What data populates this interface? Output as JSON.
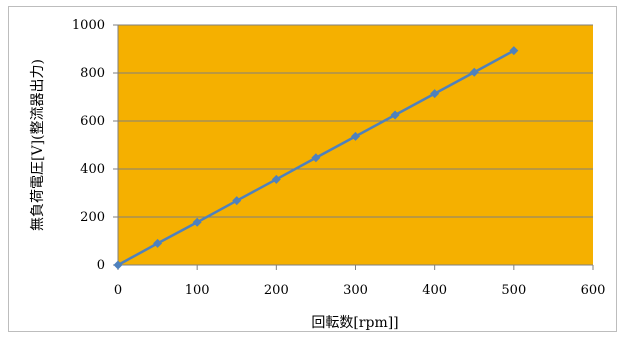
{
  "chart_data": {
    "type": "line",
    "title": "",
    "xlabel": "回転数[rpm]]",
    "ylabel": "無負荷電圧[V](整流器出力)",
    "xlim": [
      0,
      600
    ],
    "ylim": [
      0,
      1000
    ],
    "x_ticks": [
      0,
      100,
      200,
      300,
      400,
      500,
      600
    ],
    "y_ticks": [
      0,
      200,
      400,
      600,
      800,
      1000
    ],
    "x_tick_labels": [
      "0",
      "100",
      "200",
      "300",
      "400",
      "500",
      "600"
    ],
    "y_tick_labels": [
      "0",
      "200",
      "400",
      "600",
      "800",
      "1000"
    ],
    "grid": "horizontal",
    "legend": "none",
    "colors": {
      "plot_background": "#f5b000",
      "series": "#4f81bd",
      "gridline": "#7f7f7f"
    },
    "series": [
      {
        "x": [
          0,
          50,
          100,
          150,
          200,
          250,
          300,
          350,
          400,
          450,
          500
        ],
        "y": [
          0,
          90,
          178,
          268,
          357,
          447,
          536,
          625,
          714,
          803,
          893
        ]
      }
    ]
  }
}
